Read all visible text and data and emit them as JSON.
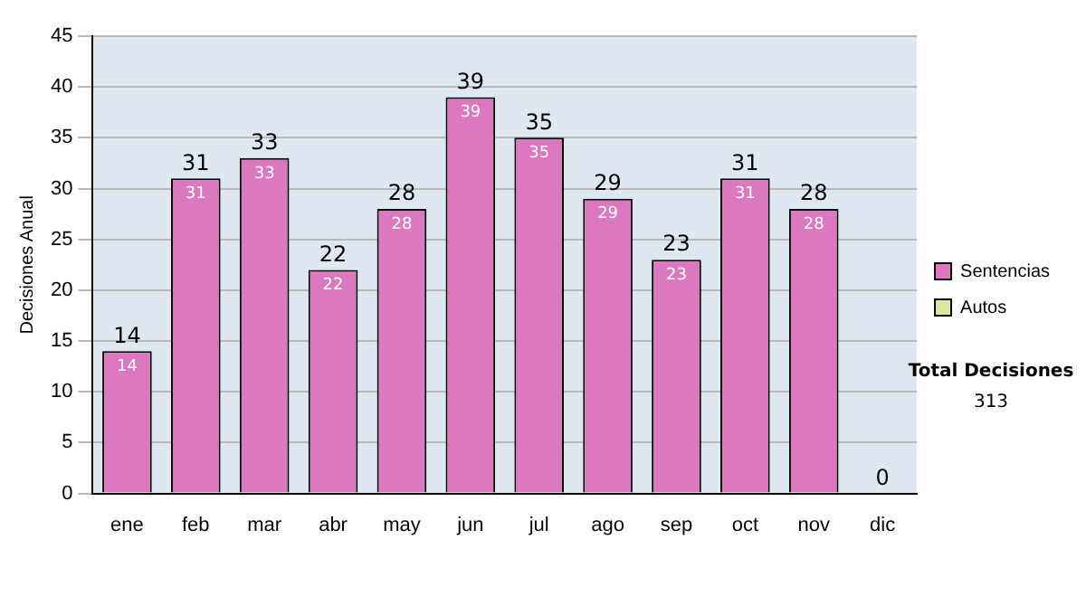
{
  "chart_data": {
    "type": "bar",
    "ylabel": "Decisiones Anual",
    "categories": [
      "ene",
      "feb",
      "mar",
      "abr",
      "may",
      "jun",
      "jul",
      "ago",
      "sep",
      "oct",
      "nov",
      "dic"
    ],
    "stacked": true,
    "series": [
      {
        "name": "Sentencias",
        "color": "#dc78c0",
        "values": [
          14,
          31,
          33,
          22,
          28,
          39,
          35,
          29,
          23,
          31,
          28,
          0
        ],
        "value_labels": [
          "14",
          "31",
          "33",
          "22",
          "28",
          "39",
          "35",
          "29",
          "23",
          "31",
          "28",
          null
        ]
      },
      {
        "name": "Autos",
        "color": "#d8eaa0",
        "values": [
          0,
          0,
          0,
          0,
          0,
          0,
          0,
          0,
          0,
          0,
          0,
          0
        ]
      }
    ],
    "totals": [
      "14",
      "31",
      "33",
      "22",
      "28",
      "39",
      "35",
      "29",
      "23",
      "31",
      "28",
      "0"
    ],
    "ylim": [
      0,
      45
    ],
    "yticks": [
      0,
      5,
      10,
      15,
      20,
      25,
      30,
      35,
      40,
      45
    ],
    "grid": "y",
    "legend": "right",
    "annotations": [
      "Total Decisiones",
      "313"
    ]
  }
}
